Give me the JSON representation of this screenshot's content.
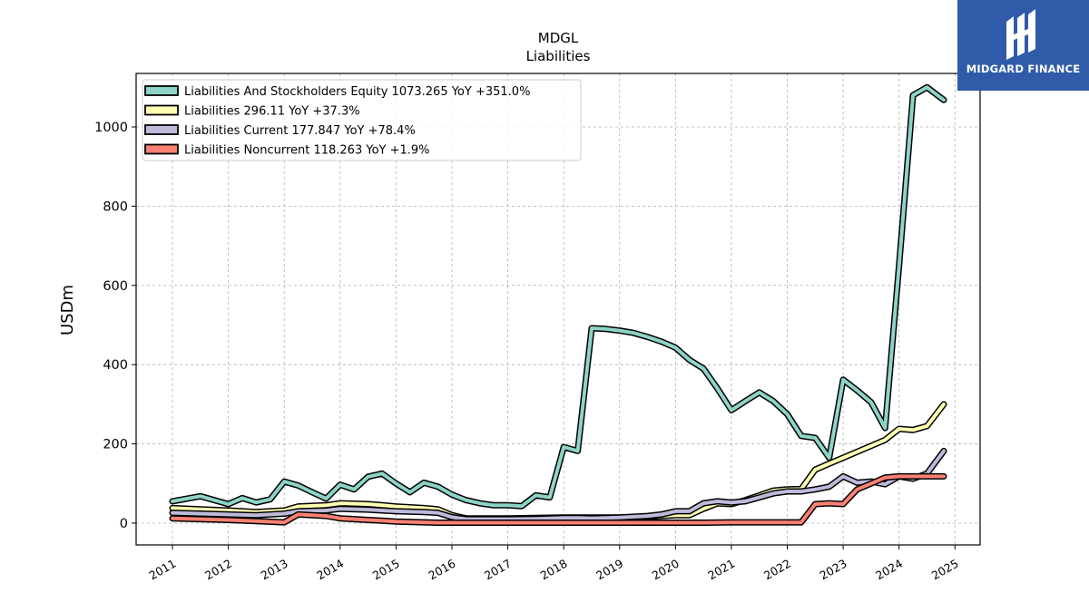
{
  "chart_data": {
    "type": "line",
    "title": "MDGL",
    "subtitle": "Liabilities",
    "xlabel": "",
    "ylabel": "USDm",
    "xlim": [
      2010.35,
      2025.45
    ],
    "ylim": [
      -55,
      1135
    ],
    "yticks": [
      0,
      200,
      400,
      600,
      800,
      1000
    ],
    "xticks": [
      2011,
      2012,
      2013,
      2014,
      2015,
      2016,
      2017,
      2018,
      2019,
      2020,
      2021,
      2022,
      2023,
      2024,
      2025
    ],
    "grid": true,
    "legend_position": "top-left",
    "series": [
      {
        "name": "Liabilities And Stockholders Equity  1073.265 YoY +351.0%",
        "color": "#8dd3c7",
        "x": [
          2011.0,
          2011.5,
          2012.0,
          2012.25,
          2012.5,
          2012.75,
          2013.0,
          2013.25,
          2013.5,
          2013.75,
          2014.0,
          2014.25,
          2014.5,
          2014.75,
          2015.0,
          2015.25,
          2015.5,
          2015.75,
          2016.0,
          2016.25,
          2016.5,
          2016.75,
          2017.0,
          2017.25,
          2017.5,
          2017.75,
          2018.0,
          2018.25,
          2018.5,
          2018.75,
          2019.0,
          2019.25,
          2019.5,
          2019.75,
          2020.0,
          2020.25,
          2020.5,
          2020.75,
          2021.0,
          2021.25,
          2021.5,
          2021.75,
          2022.0,
          2022.25,
          2022.5,
          2022.75,
          2023.0,
          2023.25,
          2023.5,
          2023.75,
          2024.0,
          2024.25,
          2024.5,
          2024.8
        ],
        "y": [
          55,
          68,
          48,
          63,
          52,
          60,
          105,
          95,
          78,
          62,
          97,
          85,
          117,
          125,
          100,
          78,
          102,
          92,
          72,
          58,
          50,
          45,
          45,
          43,
          70,
          65,
          192,
          182,
          492,
          490,
          486,
          480,
          470,
          458,
          443,
          412,
          390,
          340,
          285,
          308,
          330,
          308,
          275,
          220,
          215,
          165,
          362,
          335,
          305,
          240,
          650,
          1080,
          1100,
          1068
        ]
      },
      {
        "name": "Liabilities  296.11 YoY +37.3%",
        "color": "#ffffb3",
        "x": [
          2011.0,
          2011.5,
          2012.0,
          2012.5,
          2013.0,
          2013.25,
          2013.75,
          2014.0,
          2014.5,
          2014.75,
          2015.0,
          2015.5,
          2015.75,
          2016.0,
          2016.25,
          2016.5,
          2017.0,
          2017.5,
          2018.0,
          2018.5,
          2019.0,
          2019.5,
          2019.75,
          2020.0,
          2020.25,
          2020.5,
          2020.75,
          2021.0,
          2021.25,
          2021.5,
          2021.75,
          2022.0,
          2022.25,
          2022.5,
          2022.75,
          2023.0,
          2023.25,
          2023.5,
          2023.75,
          2024.0,
          2024.25,
          2024.5,
          2024.8
        ],
        "y": [
          38,
          35,
          32,
          28,
          32,
          42,
          45,
          50,
          48,
          45,
          42,
          38,
          35,
          20,
          12,
          12,
          12,
          13,
          14,
          14,
          14,
          16,
          18,
          20,
          20,
          36,
          50,
          48,
          58,
          70,
          82,
          85,
          86,
          135,
          150,
          165,
          180,
          195,
          210,
          238,
          235,
          245,
          300
        ]
      },
      {
        "name": "Liabilities Current  177.847 YoY +78.4%",
        "color": "#bebada",
        "x": [
          2011.0,
          2011.5,
          2012.0,
          2012.5,
          2013.0,
          2013.25,
          2013.75,
          2014.0,
          2014.5,
          2014.75,
          2015.0,
          2015.5,
          2015.75,
          2016.0,
          2016.25,
          2016.5,
          2017.0,
          2017.5,
          2018.0,
          2018.25,
          2018.5,
          2019.0,
          2019.5,
          2019.75,
          2020.0,
          2020.25,
          2020.5,
          2020.75,
          2021.0,
          2021.25,
          2021.5,
          2021.75,
          2022.0,
          2022.25,
          2022.5,
          2022.75,
          2023.0,
          2023.25,
          2023.5,
          2023.75,
          2024.0,
          2024.25,
          2024.5,
          2024.8
        ],
        "y": [
          26,
          24,
          22,
          20,
          24,
          30,
          32,
          36,
          34,
          32,
          30,
          28,
          26,
          15,
          10,
          10,
          10,
          11,
          13,
          13,
          12,
          14,
          18,
          22,
          30,
          30,
          50,
          55,
          52,
          55,
          65,
          75,
          80,
          80,
          85,
          92,
          118,
          102,
          105,
          98,
          118,
          112,
          125,
          182
        ]
      },
      {
        "name": "Liabilities Noncurrent  118.263 YoY +1.9%",
        "color": "#fb8072",
        "x": [
          2011.0,
          2011.5,
          2012.0,
          2012.5,
          2013.0,
          2013.25,
          2013.75,
          2014.0,
          2014.5,
          2014.75,
          2015.0,
          2015.5,
          2015.75,
          2016.0,
          2016.5,
          2017.0,
          2017.5,
          2018.0,
          2018.5,
          2019.0,
          2019.5,
          2020.0,
          2020.5,
          2021.0,
          2021.5,
          2022.0,
          2022.25,
          2022.5,
          2022.75,
          2023.0,
          2023.25,
          2023.5,
          2023.75,
          2024.0,
          2024.5,
          2024.8
        ],
        "y": [
          12,
          10,
          8,
          5,
          2,
          22,
          18,
          12,
          8,
          6,
          4,
          2,
          1,
          1,
          1,
          1,
          1,
          1,
          1,
          1,
          1,
          1,
          1,
          2,
          2,
          2,
          2,
          48,
          50,
          48,
          85,
          100,
          115,
          118,
          118,
          118
        ]
      }
    ]
  },
  "logo": {
    "name": "MIDGARD FINANCE"
  }
}
